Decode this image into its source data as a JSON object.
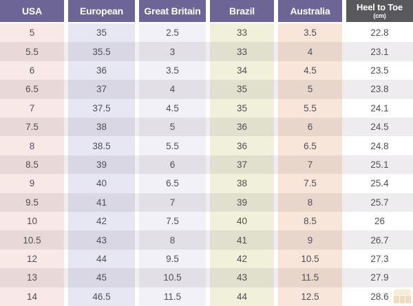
{
  "chart_data": {
    "type": "table",
    "columns": [
      "USA",
      "European",
      "Great Britain",
      "Brazil",
      "Australia",
      "Heel to Toe (cm)"
    ],
    "rows": [
      [
        "5",
        "35",
        "2.5",
        "33",
        "3.5",
        "22.8"
      ],
      [
        "5.5",
        "35.5",
        "3",
        "33",
        "4",
        "23.1"
      ],
      [
        "6",
        "36",
        "3.5",
        "34",
        "4.5",
        "23.5"
      ],
      [
        "6.5",
        "37",
        "4",
        "35",
        "5",
        "23.8"
      ],
      [
        "7",
        "37.5",
        "4.5",
        "35",
        "5.5",
        "24.1"
      ],
      [
        "7.5",
        "38",
        "5",
        "36",
        "6",
        "24.5"
      ],
      [
        "8",
        "38.5",
        "5.5",
        "36",
        "6.5",
        "24.8"
      ],
      [
        "8.5",
        "39",
        "6",
        "37",
        "7",
        "25.1"
      ],
      [
        "9",
        "40",
        "6.5",
        "38",
        "7.5",
        "25.4"
      ],
      [
        "9.5",
        "41",
        "7",
        "39",
        "8",
        "25.7"
      ],
      [
        "10",
        "42",
        "7.5",
        "40",
        "8.5",
        "26"
      ],
      [
        "10.5",
        "43",
        "8",
        "41",
        "9",
        "26.7"
      ],
      [
        "12",
        "44",
        "9.5",
        "42",
        "10.5",
        "27.3"
      ],
      [
        "13",
        "45",
        "10.5",
        "43",
        "11.5",
        "27.9"
      ],
      [
        "14",
        "46.5",
        "11.5",
        "44",
        "12.5",
        "28.6"
      ]
    ],
    "legend": "none",
    "grid": "row-banding"
  },
  "table": {
    "headers": [
      {
        "label": "USA"
      },
      {
        "label": "European"
      },
      {
        "label": "Great Britain"
      },
      {
        "label": "Brazil"
      },
      {
        "label": "Australia"
      },
      {
        "label": "Heel to Toe",
        "sublabel": "(cm)"
      }
    ]
  },
  "colors": {
    "header_bg": "#6c6596",
    "header_dark_bg": "#59585c",
    "header_text": "#ffffff",
    "cell_text": "#4f4e53",
    "alt_row_tint": "rgba(120,112,122,0.13)",
    "watermark_orange": "#e2953f",
    "column_bands": [
      "#f8e9e6",
      "#e7e7f4",
      "#f2f1f7",
      "#f1f0da",
      "#f8e6da",
      "#ffffff"
    ]
  }
}
